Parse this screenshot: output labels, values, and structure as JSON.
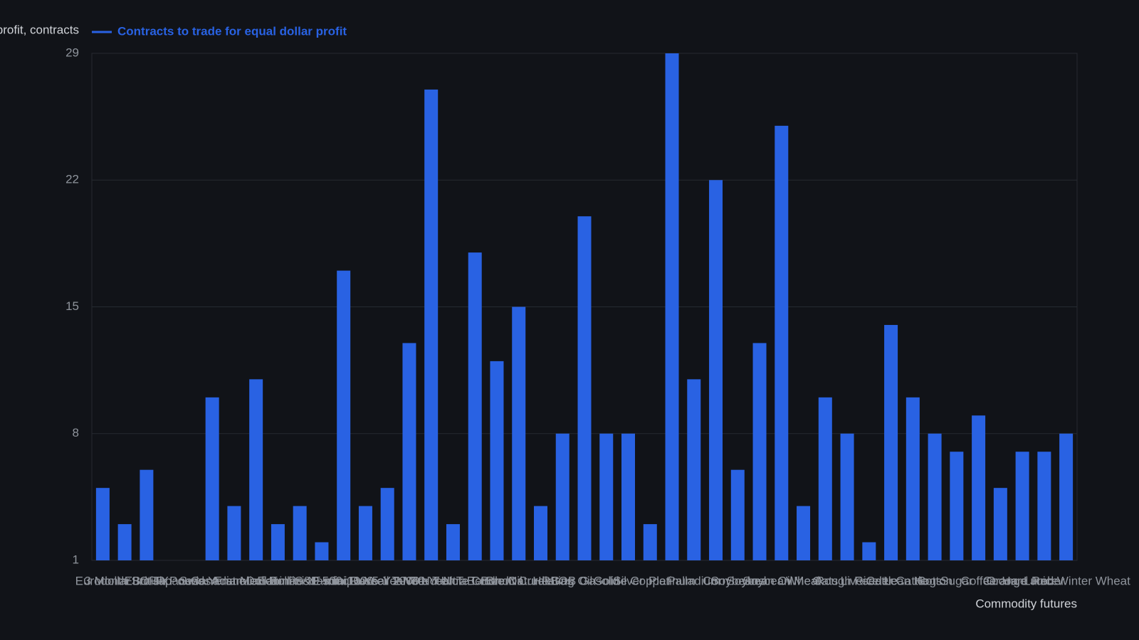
{
  "chart_data": {
    "type": "bar",
    "y_label": "Contracts to trade for equal dollar profit, contracts",
    "x_label": "Commodity futures",
    "categories": [
      "Eurodollar",
      "3 Month SOFR",
      "Euro FX",
      "British Pound",
      "Japanese Yen",
      "Swiss Franc",
      "Canadian Dollar",
      "Australian Dollar",
      "Mexican Peso",
      "E-mini S&P 500",
      "E-mini Nasdaq-100",
      "E-mini Dow",
      "E-mini Russell 2000",
      "10-Year T-Note",
      "5-Year T-Note",
      "2-Year T-Note",
      "30-Year T-Bond",
      "Ultra T-Bond",
      "Crude Oil",
      "Brent Crude",
      "Natural Gas",
      "Heating Oil",
      "RBOB Gasoline",
      "Gold",
      "Silver",
      "Copper",
      "Platinum",
      "Palladium",
      "Corn",
      "Soybeans",
      "Soybean Oil",
      "Soybean Meal",
      "Wheat",
      "Oats",
      "Rough Rice",
      "Live Cattle",
      "Feeder Cattle",
      "Lean Hogs",
      "Cotton",
      "Sugar",
      "Coffee",
      "Cocoa",
      "Orange Juice",
      "Lumber",
      "Hard Red Winter Wheat"
    ],
    "series": [
      {
        "name": "Contracts to trade for equal dollar profit",
        "color": "#2962e3",
        "values": [
          5,
          3,
          6,
          1,
          1,
          10,
          4,
          11,
          3,
          4,
          2,
          17,
          4,
          5,
          13,
          27,
          3,
          18,
          12,
          15,
          4,
          8,
          20,
          8,
          8,
          3,
          29,
          11,
          22,
          6,
          13,
          25,
          4,
          10,
          8,
          2,
          14,
          10,
          8,
          7,
          9,
          5,
          7,
          7,
          8
        ]
      }
    ],
    "ylim": [
      1,
      29
    ],
    "yticks": [
      1,
      8,
      15,
      22,
      29
    ],
    "grid": true,
    "legend": "top-left"
  }
}
